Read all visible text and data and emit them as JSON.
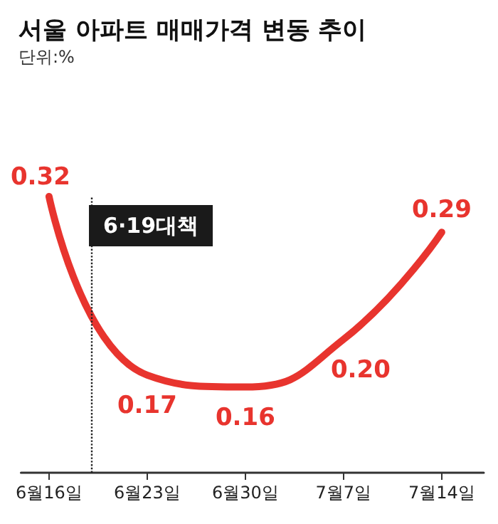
{
  "chart_data": {
    "type": "line",
    "title": "서울 아파트 매매가격 변동 추이",
    "subtitle": "단위:%",
    "x": [
      "--06-16",
      "--06-23",
      "--06-30",
      "--07-07",
      "--07-14"
    ],
    "xlim": [
      "--06-14",
      "--07-17"
    ],
    "xticks": [
      {
        "value": "--06-16",
        "label": "6월16일"
      },
      {
        "value": "--06-23",
        "label": "6월23일"
      },
      {
        "value": "--06-30",
        "label": "6월30일"
      },
      {
        "value": "--07-07",
        "label": "7월7일"
      },
      {
        "value": "--07-14",
        "label": "7월14일"
      }
    ],
    "series": [
      {
        "color": "#e8342e",
        "values": [
          0.32,
          0.17,
          0.16,
          0.2,
          0.29
        ],
        "value_labels": [
          "0.32",
          "0.17",
          "0.16",
          "0.20",
          "0.29"
        ]
      }
    ],
    "grid": false,
    "marker": "none",
    "line_style": "solid",
    "tick_labels": "x",
    "ref_lines": [
      {
        "axis": "x",
        "value": "--06-19",
        "label": "6·19대책",
        "color": "#222222",
        "line_style": "dotted"
      }
    ]
  }
}
